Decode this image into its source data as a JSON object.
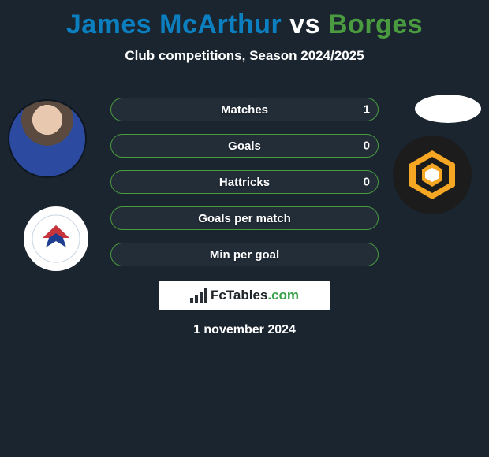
{
  "header": {
    "player1": "James McArthur",
    "vs": "vs",
    "player2": "Borges",
    "player1_color": "#0b7fbf",
    "player2_color": "#4a9a3f",
    "subtitle": "Club competitions, Season 2024/2025"
  },
  "stats": {
    "rows": [
      {
        "label": "Matches",
        "left": "",
        "right": "1",
        "border_color": "#4a9a3f"
      },
      {
        "label": "Goals",
        "left": "",
        "right": "0",
        "border_color": "#4a9a3f"
      },
      {
        "label": "Hattricks",
        "left": "",
        "right": "0",
        "border_color": "#4a9a3f"
      },
      {
        "label": "Goals per match",
        "left": "",
        "right": "",
        "border_color": "#4a9a3f"
      },
      {
        "label": "Min per goal",
        "left": "",
        "right": "",
        "border_color": "#4a9a3f"
      }
    ],
    "row_bg": "rgba(255,255,255,0.04)"
  },
  "branding": {
    "site_name_1": "FcTables",
    "site_name_2": ".com",
    "icon_color": "#2a2f35"
  },
  "date": "1 november 2024",
  "colors": {
    "background": "#1a2530",
    "text": "#ffffff"
  },
  "clubs": {
    "left_badge_bg": "#ffffff",
    "right_badge_bg": "#1c1c1c",
    "right_badge_accent": "#f5a623"
  }
}
